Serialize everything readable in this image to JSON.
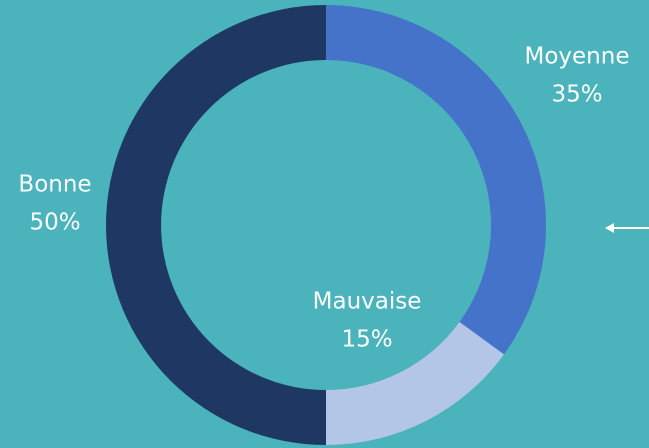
{
  "chart_data": {
    "type": "donut",
    "categories": [
      "Moyenne",
      "Mauvaise",
      "Bonne"
    ],
    "values": [
      35,
      15,
      50
    ],
    "value_labels": [
      "35%",
      "15%",
      "50%"
    ],
    "colors": [
      "#4573c9",
      "#b4c6e7",
      "#1f3763"
    ]
  }
}
